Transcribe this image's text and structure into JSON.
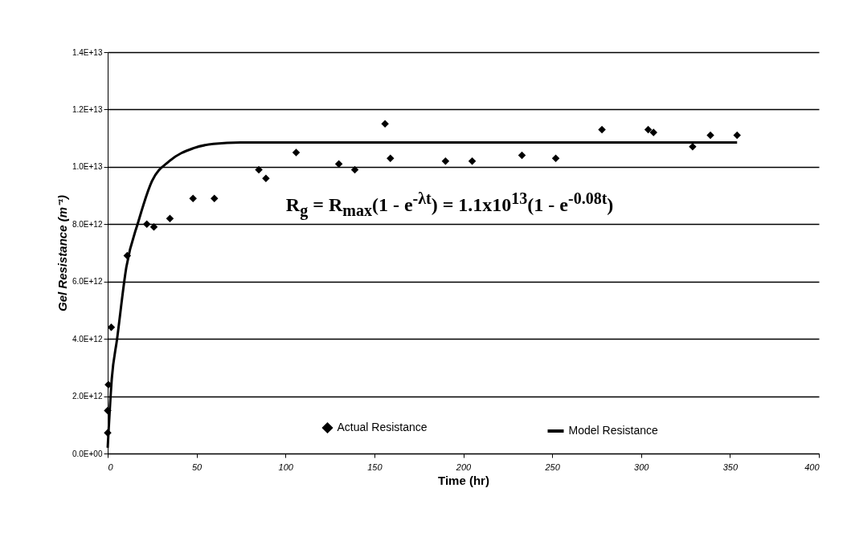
{
  "chart_data": {
    "type": "scatter",
    "xlabel": "Time (hr)",
    "ylabel": "Gel Resistance (m⁻¹)",
    "xlim": [
      0,
      400
    ],
    "xticks": [
      0,
      50,
      100,
      150,
      200,
      250,
      300,
      350,
      400
    ],
    "ylim": [
      0,
      14000000000000.0
    ],
    "yticks": [
      {
        "value": 0,
        "label": "0.0E+00"
      },
      {
        "value": 2000000000000.0,
        "label": "2.0E+12"
      },
      {
        "value": 4000000000000.0,
        "label": "4.0E+12"
      },
      {
        "value": 6000000000000.0,
        "label": "6.0E+12"
      },
      {
        "value": 8000000000000.0,
        "label": "8.0E+12"
      },
      {
        "value": 10000000000000.0,
        "label": "1.0E+13"
      },
      {
        "value": 12000000000000.0,
        "label": "1.2E+13"
      },
      {
        "value": 14000000000000.0,
        "label": "1.4E+13"
      }
    ],
    "grid": "y",
    "legend": "bottom",
    "annotations": [
      "R$_{g}$ = R$_{max}$(1 - e$^{-λt}$) = 1.1x10$^{13}$(1 - e$^{-0.08t}$)"
    ],
    "series": [
      {
        "name": "Actual Resistance",
        "marker": "diamond",
        "color": "#000000",
        "x": [
          0,
          0,
          0.4,
          2,
          11,
          22,
          26,
          35,
          48,
          60,
          85,
          89,
          106,
          130,
          139,
          156,
          159,
          190,
          205,
          233,
          252,
          278,
          304,
          307,
          329,
          339,
          354
        ],
        "values": [
          720000000000.0,
          1500000000000.0,
          2400000000000.0,
          4400000000000.0,
          6900000000000.0,
          8000000000000.0,
          7900000000000.0,
          8200000000000.0,
          8900000000000.0,
          8900000000000.0,
          9900000000000.0,
          9600000000000.0,
          10500000000000.0,
          10100000000000.0,
          9900000000000.0,
          11500000000000.0,
          10300000000000.0,
          10200000000000.0,
          10200000000000.0,
          10400000000000.0,
          10300000000000.0,
          11300000000000.0,
          11300000000000.0,
          11200000000000.0,
          10700000000000.0,
          11100000000000.0,
          11100000000000.0
        ]
      },
      {
        "name": "Model Resistance",
        "type": "line",
        "marker": "none",
        "line_style": "solid",
        "color": "#000000",
        "x": [
          0,
          2.3,
          5.3,
          10.5,
          17.3,
          24.9,
          34.7,
          48.2,
          59.5,
          74.6,
          150,
          250,
          354
        ],
        "values": [
          200000000000.0,
          2600000000000.0,
          4000000000000.0,
          6500000000000.0,
          8100000000000.0,
          9500000000000.0,
          10200000000000.0,
          10650000000000.0,
          10800000000000.0,
          10850000000000.0,
          10850000000000.0,
          10850000000000.0,
          10850000000000.0
        ]
      }
    ]
  }
}
